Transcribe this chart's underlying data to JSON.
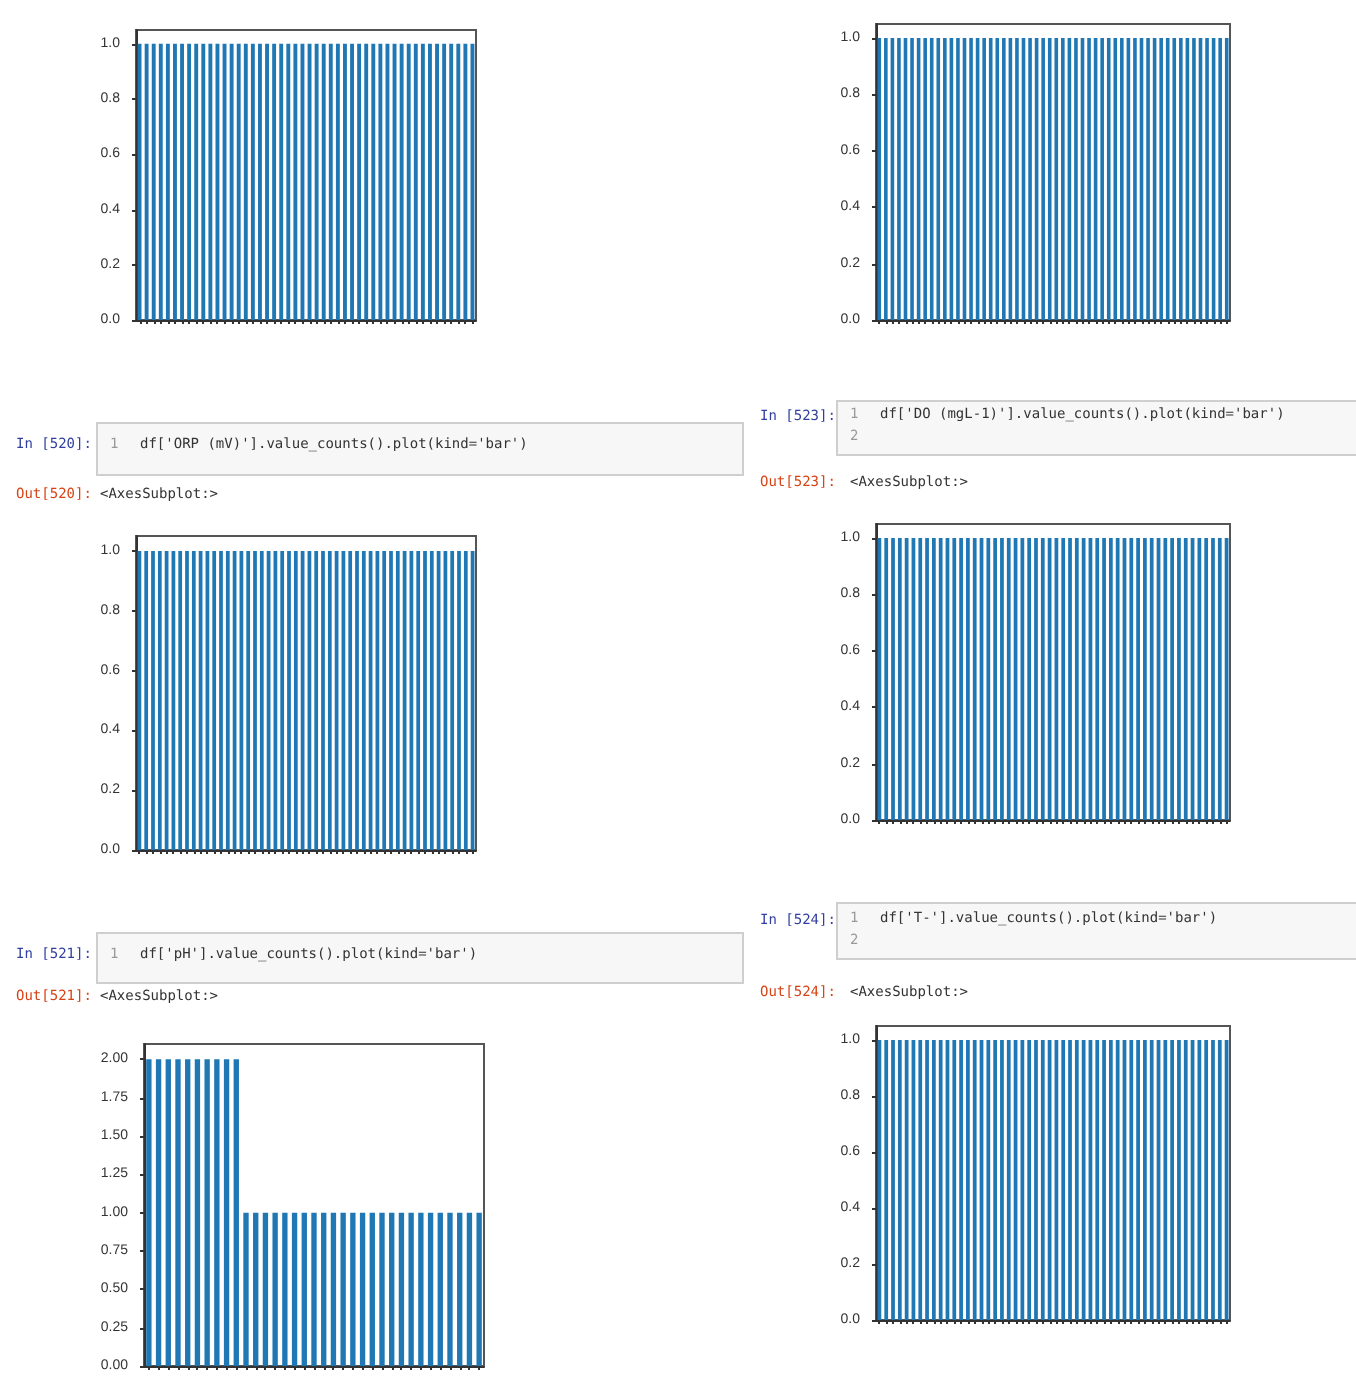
{
  "chart_data": [
    {
      "type": "bar",
      "color": "#1f77b4",
      "categories": [
        null,
        null,
        null,
        null,
        null,
        null,
        null,
        null,
        null,
        null,
        null,
        null,
        null,
        null,
        null,
        null,
        null,
        null,
        null,
        null,
        null,
        null,
        null,
        null,
        null,
        null,
        null,
        null,
        null,
        null,
        null,
        null,
        null,
        null,
        null,
        null,
        null,
        null,
        null,
        null,
        null,
        null,
        null,
        null,
        null,
        null,
        null,
        null
      ],
      "values": [
        1,
        1,
        1,
        1,
        1,
        1,
        1,
        1,
        1,
        1,
        1,
        1,
        1,
        1,
        1,
        1,
        1,
        1,
        1,
        1,
        1,
        1,
        1,
        1,
        1,
        1,
        1,
        1,
        1,
        1,
        1,
        1,
        1,
        1,
        1,
        1,
        1,
        1,
        1,
        1,
        1,
        1,
        1,
        1,
        1,
        1,
        1,
        1
      ],
      "ylim": [
        0,
        1.05
      ],
      "yticks": [
        {
          "value": 0,
          "label": "0.0"
        },
        {
          "value": 0.2,
          "label": "0.2"
        },
        {
          "value": 0.4,
          "label": "0.4"
        },
        {
          "value": 0.6,
          "label": "0.6"
        },
        {
          "value": 0.8,
          "label": "0.8"
        },
        {
          "value": 1,
          "label": "1.0"
        }
      ],
      "grid": false
    },
    {
      "type": "bar",
      "color": "#1f77b4",
      "categories": [
        null,
        null,
        null,
        null,
        null,
        null,
        null,
        null,
        null,
        null,
        null,
        null,
        null,
        null,
        null,
        null,
        null,
        null,
        null,
        null,
        null,
        null,
        null,
        null,
        null,
        null,
        null,
        null,
        null,
        null,
        null,
        null,
        null,
        null,
        null,
        null,
        null,
        null,
        null,
        null,
        null,
        null,
        null,
        null,
        null,
        null,
        null,
        null,
        null,
        null,
        null,
        null,
        null,
        null
      ],
      "values": [
        1,
        1,
        1,
        1,
        1,
        1,
        1,
        1,
        1,
        1,
        1,
        1,
        1,
        1,
        1,
        1,
        1,
        1,
        1,
        1,
        1,
        1,
        1,
        1,
        1,
        1,
        1,
        1,
        1,
        1,
        1,
        1,
        1,
        1,
        1,
        1,
        1,
        1,
        1,
        1,
        1,
        1,
        1,
        1,
        1,
        1,
        1,
        1,
        1,
        1,
        1,
        1,
        1,
        1
      ],
      "ylim": [
        0,
        1.05
      ],
      "yticks": [
        {
          "value": 0,
          "label": "0.0"
        },
        {
          "value": 0.2,
          "label": "0.2"
        },
        {
          "value": 0.4,
          "label": "0.4"
        },
        {
          "value": 0.6,
          "label": "0.6"
        },
        {
          "value": 0.8,
          "label": "0.8"
        },
        {
          "value": 1,
          "label": "1.0"
        }
      ],
      "grid": false
    },
    {
      "type": "bar",
      "color": "#1f77b4",
      "categories": [
        null,
        null,
        null,
        null,
        null,
        null,
        null,
        null,
        null,
        null,
        null,
        null,
        null,
        null,
        null,
        null,
        null,
        null,
        null,
        null,
        null,
        null,
        null,
        null,
        null,
        null,
        null,
        null,
        null,
        null,
        null,
        null,
        null,
        null,
        null,
        null,
        null,
        null,
        null,
        null,
        null,
        null,
        null,
        null,
        null,
        null,
        null,
        null,
        null,
        null
      ],
      "values": [
        1,
        1,
        1,
        1,
        1,
        1,
        1,
        1,
        1,
        1,
        1,
        1,
        1,
        1,
        1,
        1,
        1,
        1,
        1,
        1,
        1,
        1,
        1,
        1,
        1,
        1,
        1,
        1,
        1,
        1,
        1,
        1,
        1,
        1,
        1,
        1,
        1,
        1,
        1,
        1,
        1,
        1,
        1,
        1,
        1,
        1,
        1,
        1,
        1,
        1
      ],
      "ylim": [
        0,
        1.05
      ],
      "yticks": [
        {
          "value": 0,
          "label": "0.0"
        },
        {
          "value": 0.2,
          "label": "0.2"
        },
        {
          "value": 0.4,
          "label": "0.4"
        },
        {
          "value": 0.6,
          "label": "0.6"
        },
        {
          "value": 0.8,
          "label": "0.8"
        },
        {
          "value": 1,
          "label": "1.0"
        }
      ],
      "grid": false,
      "annotations": [
        "In [520]:",
        "1",
        "df['ORP (mV)'].value_counts().plot(kind='bar')",
        "Out[520]:",
        "<AxesSubplot:>"
      ]
    },
    {
      "type": "bar",
      "color": "#1f77b4",
      "categories": [
        null,
        null,
        null,
        null,
        null,
        null,
        null,
        null,
        null,
        null,
        null,
        null,
        null,
        null,
        null,
        null,
        null,
        null,
        null,
        null,
        null,
        null,
        null,
        null,
        null,
        null,
        null,
        null,
        null,
        null,
        null,
        null,
        null,
        null,
        null,
        null,
        null,
        null,
        null,
        null,
        null,
        null,
        null,
        null,
        null,
        null,
        null,
        null,
        null,
        null,
        null,
        null
      ],
      "values": [
        1,
        1,
        1,
        1,
        1,
        1,
        1,
        1,
        1,
        1,
        1,
        1,
        1,
        1,
        1,
        1,
        1,
        1,
        1,
        1,
        1,
        1,
        1,
        1,
        1,
        1,
        1,
        1,
        1,
        1,
        1,
        1,
        1,
        1,
        1,
        1,
        1,
        1,
        1,
        1,
        1,
        1,
        1,
        1,
        1,
        1,
        1,
        1,
        1,
        1,
        1,
        1
      ],
      "ylim": [
        0,
        1.05
      ],
      "yticks": [
        {
          "value": 0,
          "label": "0.0"
        },
        {
          "value": 0.2,
          "label": "0.2"
        },
        {
          "value": 0.4,
          "label": "0.4"
        },
        {
          "value": 0.6,
          "label": "0.6"
        },
        {
          "value": 0.8,
          "label": "0.8"
        },
        {
          "value": 1,
          "label": "1.0"
        }
      ],
      "grid": false,
      "annotations": [
        "In [523]:",
        "1",
        "2",
        "df['DO (mgL-1)'].value_counts().plot(kind='bar')",
        "Out[523]:",
        "<AxesSubplot:>"
      ]
    },
    {
      "type": "bar",
      "color": "#1f77b4",
      "categories": [
        null,
        null,
        null,
        null,
        null,
        null,
        null,
        null,
        null,
        null,
        null,
        null,
        null,
        null,
        null,
        null,
        null,
        null,
        null,
        null,
        null,
        null,
        null,
        null,
        null,
        null,
        null,
        null,
        null,
        null,
        null,
        null,
        null,
        null,
        null
      ],
      "values": [
        2,
        2,
        2,
        2,
        2,
        2,
        2,
        2,
        2,
        2,
        1,
        1,
        1,
        1,
        1,
        1,
        1,
        1,
        1,
        1,
        1,
        1,
        1,
        1,
        1,
        1,
        1,
        1,
        1,
        1,
        1,
        1,
        1,
        1,
        1
      ],
      "ylim": [
        0,
        2.1
      ],
      "yticks": [
        {
          "value": 0,
          "label": "0.00"
        },
        {
          "value": 0.25,
          "label": "0.25"
        },
        {
          "value": 0.5,
          "label": "0.50"
        },
        {
          "value": 0.75,
          "label": "0.75"
        },
        {
          "value": 1,
          "label": "1.00"
        },
        {
          "value": 1.25,
          "label": "1.25"
        },
        {
          "value": 1.5,
          "label": "1.50"
        },
        {
          "value": 1.75,
          "label": "1.75"
        },
        {
          "value": 2,
          "label": "2.00"
        }
      ],
      "grid": false,
      "annotations": [
        "In [521]:",
        "1",
        "df['pH'].value_counts().plot(kind='bar')",
        "Out[521]:",
        "<AxesSubplot:>"
      ]
    },
    {
      "type": "bar",
      "color": "#1f77b4",
      "categories": [
        null,
        null,
        null,
        null,
        null,
        null,
        null,
        null,
        null,
        null,
        null,
        null,
        null,
        null,
        null,
        null,
        null,
        null,
        null,
        null,
        null,
        null,
        null,
        null,
        null,
        null,
        null,
        null,
        null,
        null,
        null,
        null,
        null,
        null,
        null,
        null,
        null,
        null,
        null,
        null,
        null,
        null,
        null,
        null,
        null,
        null,
        null,
        null,
        null,
        null,
        null,
        null
      ],
      "values": [
        1,
        1,
        1,
        1,
        1,
        1,
        1,
        1,
        1,
        1,
        1,
        1,
        1,
        1,
        1,
        1,
        1,
        1,
        1,
        1,
        1,
        1,
        1,
        1,
        1,
        1,
        1,
        1,
        1,
        1,
        1,
        1,
        1,
        1,
        1,
        1,
        1,
        1,
        1,
        1,
        1,
        1,
        1,
        1,
        1,
        1,
        1,
        1,
        1,
        1,
        1,
        1
      ],
      "ylim": [
        0,
        1.05
      ],
      "yticks": [
        {
          "value": 0,
          "label": "0.0"
        },
        {
          "value": 0.2,
          "label": "0.2"
        },
        {
          "value": 0.4,
          "label": "0.4"
        },
        {
          "value": 0.6,
          "label": "0.6"
        },
        {
          "value": 0.8,
          "label": "0.8"
        },
        {
          "value": 1,
          "label": "1.0"
        }
      ],
      "grid": false,
      "annotations": [
        "In [524]:",
        "1",
        "2",
        "df['T-'].value_counts().plot(kind='bar')",
        "Out[524]:",
        "<AxesSubplot:>"
      ]
    }
  ]
}
